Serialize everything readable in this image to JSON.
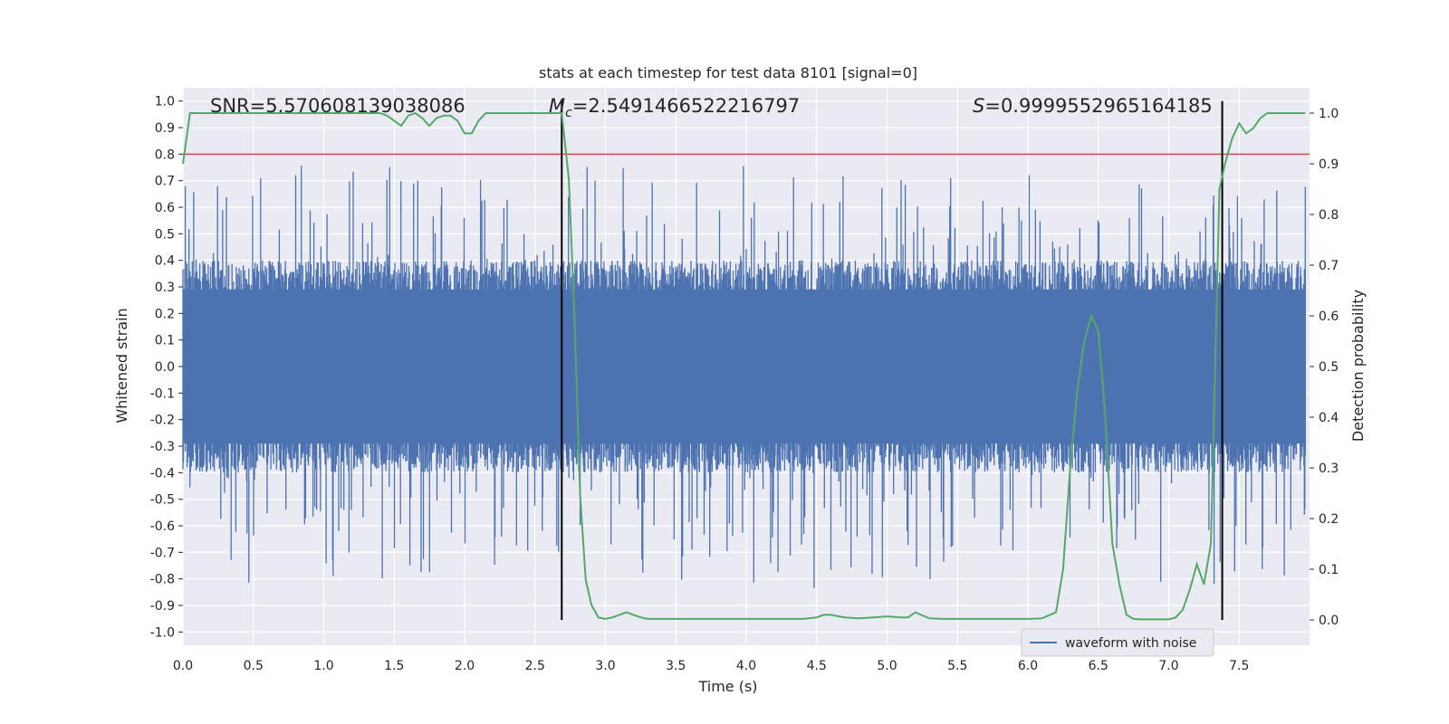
{
  "chart_data": {
    "type": "line",
    "title": "stats at each timestep for test data 8101 [signal=0]",
    "xlabel": "Time (s)",
    "ylabel_left": "Whitened strain",
    "ylabel_right": "Detection probability",
    "xlim": [
      0.0,
      8.0
    ],
    "ylim_left": [
      -1.05,
      1.05
    ],
    "ylim_right": [
      -0.05,
      1.05
    ],
    "xticks": [
      "0.0",
      "0.5",
      "1.0",
      "1.5",
      "2.0",
      "2.5",
      "3.0",
      "3.5",
      "4.0",
      "4.5",
      "5.0",
      "5.5",
      "6.0",
      "6.5",
      "7.0",
      "7.5"
    ],
    "yticks_left": [
      "1.0",
      "0.9",
      "0.8",
      "0.7",
      "0.6",
      "0.5",
      "0.4",
      "0.3",
      "0.2",
      "0.1",
      "0.0",
      "-0.1",
      "-0.2",
      "-0.3",
      "-0.4",
      "-0.5",
      "-0.6",
      "-0.7",
      "-0.8",
      "-0.9",
      "-1.0"
    ],
    "yticks_right": [
      "1.0",
      "0.9",
      "0.8",
      "0.7",
      "0.6",
      "0.5",
      "0.4",
      "0.3",
      "0.2",
      "0.1",
      "0.0"
    ],
    "grid": true,
    "legend_placement": "lower-right",
    "annotations": {
      "snr": "SNR=5.570608139038086",
      "mc_symbol": "M",
      "mc_sub": "c",
      "mc_value": "=2.5491466522216797",
      "s_symbol": "S",
      "s_value": "=0.9999552965164185"
    },
    "threshold": 0.8,
    "vlines_x": [
      2.69,
      7.38
    ],
    "waveform": {
      "name": "waveform with noise",
      "color": "#4c72b0",
      "envelope_typical": 0.4,
      "envelope_peak": 1.0
    },
    "probability": {
      "color": "#55a868",
      "x": [
        0.0,
        0.05,
        0.1,
        0.2,
        0.3,
        0.4,
        0.5,
        0.6,
        0.7,
        0.8,
        0.9,
        1.0,
        1.1,
        1.2,
        1.3,
        1.4,
        1.45,
        1.5,
        1.55,
        1.6,
        1.65,
        1.7,
        1.75,
        1.8,
        1.85,
        1.9,
        1.95,
        2.0,
        2.05,
        2.1,
        2.15,
        2.2,
        2.3,
        2.4,
        2.5,
        2.6,
        2.69,
        2.74,
        2.78,
        2.82,
        2.86,
        2.9,
        2.95,
        3.0,
        3.05,
        3.1,
        3.15,
        3.2,
        3.25,
        3.3,
        3.4,
        3.5,
        3.6,
        3.7,
        3.8,
        3.9,
        4.0,
        4.1,
        4.2,
        4.3,
        4.4,
        4.5,
        4.55,
        4.6,
        4.7,
        4.8,
        4.9,
        5.0,
        5.1,
        5.15,
        5.2,
        5.3,
        5.4,
        5.5,
        5.6,
        5.7,
        5.8,
        5.9,
        6.0,
        6.1,
        6.2,
        6.25,
        6.3,
        6.35,
        6.4,
        6.45,
        6.5,
        6.55,
        6.6,
        6.65,
        6.7,
        6.75,
        6.8,
        6.9,
        7.0,
        7.05,
        7.1,
        7.15,
        7.2,
        7.25,
        7.3,
        7.33,
        7.36,
        7.4,
        7.45,
        7.5,
        7.55,
        7.6,
        7.65,
        7.7,
        7.8,
        7.9,
        7.97
      ],
      "y": [
        0.9,
        1.0,
        1.0,
        1.0,
        1.0,
        1.0,
        1.0,
        1.0,
        1.0,
        1.0,
        1.0,
        1.0,
        1.0,
        1.0,
        1.0,
        1.0,
        0.995,
        0.985,
        0.975,
        0.995,
        1.0,
        0.99,
        0.975,
        0.99,
        0.995,
        0.995,
        0.985,
        0.96,
        0.96,
        0.985,
        1.0,
        1.0,
        1.0,
        1.0,
        1.0,
        1.0,
        1.0,
        0.87,
        0.6,
        0.25,
        0.08,
        0.03,
        0.005,
        0.002,
        0.005,
        0.01,
        0.015,
        0.01,
        0.005,
        0.002,
        0.002,
        0.002,
        0.002,
        0.002,
        0.002,
        0.002,
        0.002,
        0.002,
        0.002,
        0.002,
        0.002,
        0.005,
        0.01,
        0.01,
        0.005,
        0.003,
        0.005,
        0.007,
        0.005,
        0.005,
        0.015,
        0.003,
        0.002,
        0.002,
        0.002,
        0.002,
        0.002,
        0.002,
        0.002,
        0.003,
        0.015,
        0.1,
        0.3,
        0.45,
        0.55,
        0.6,
        0.57,
        0.4,
        0.15,
        0.07,
        0.01,
        0.002,
        0.001,
        0.001,
        0.001,
        0.005,
        0.02,
        0.06,
        0.11,
        0.07,
        0.15,
        0.5,
        0.85,
        0.9,
        0.95,
        0.98,
        0.96,
        0.97,
        0.99,
        1.0,
        1.0,
        1.0,
        1.0
      ]
    },
    "threshold_color": "#c44e52",
    "vline_color": "#000000",
    "background": "#eaeaf2"
  }
}
